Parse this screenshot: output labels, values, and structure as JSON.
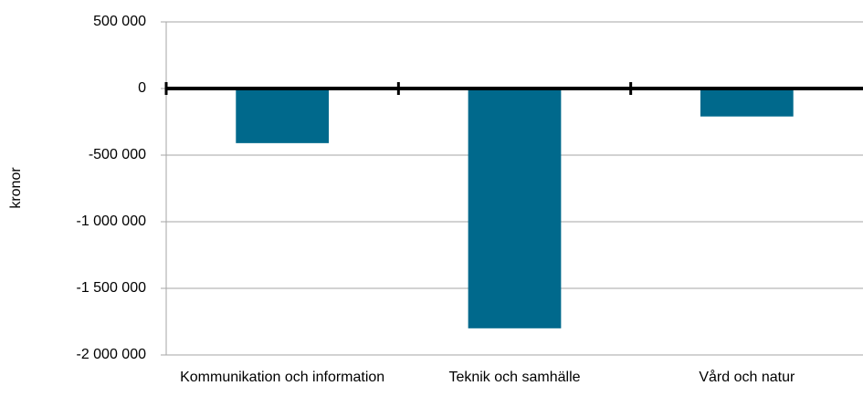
{
  "chart_data": {
    "type": "bar",
    "y_label": "kronor",
    "categories": [
      "Kommunikation och information",
      "Teknik och samhälle",
      "Vård och natur"
    ],
    "values": [
      -410000,
      -1800000,
      -210000
    ],
    "color": "#00698c",
    "ylim": [
      -2000000,
      500000
    ],
    "yticks": [
      {
        "value": -2000000,
        "label": "-2 000 000"
      },
      {
        "value": -1500000,
        "label": "-1 500 000"
      },
      {
        "value": -1000000,
        "label": "-1 000 000"
      },
      {
        "value": -500000,
        "label": "-500 000"
      },
      0,
      {
        "value": 500000,
        "label": "500 000"
      }
    ],
    "grid": true
  }
}
